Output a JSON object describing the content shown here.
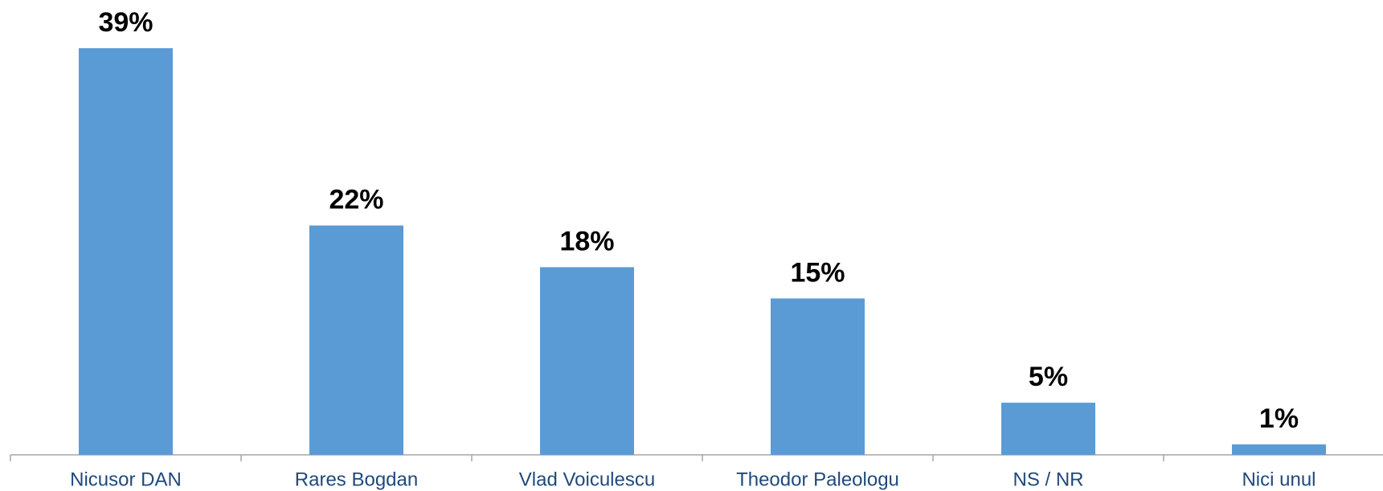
{
  "chart_data": {
    "type": "bar",
    "categories": [
      "Nicusor DAN",
      "Rares Bogdan",
      "Vlad Voiculescu",
      "Theodor Paleologu",
      "NS / NR",
      "Nici unul"
    ],
    "values": [
      39,
      22,
      18,
      15,
      5,
      1
    ],
    "value_labels": [
      "39%",
      "22%",
      "18%",
      "15%",
      "5%",
      "1%"
    ],
    "color": "#5b9bd5"
  }
}
